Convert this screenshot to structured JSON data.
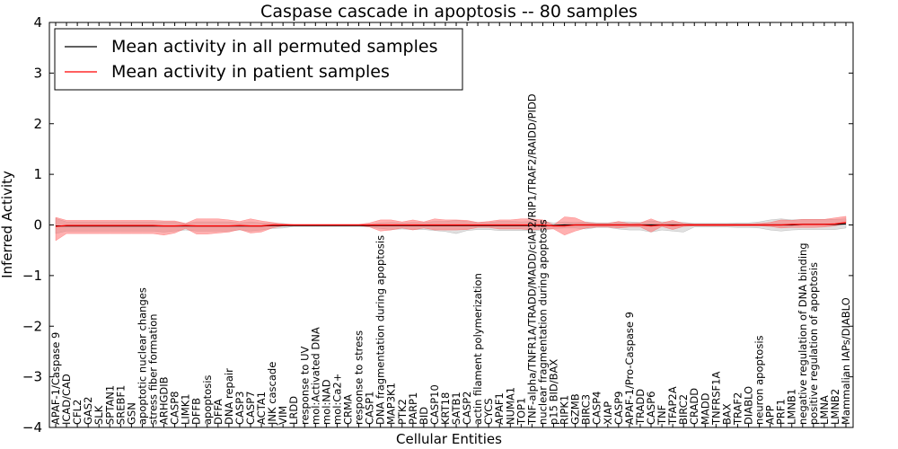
{
  "chart_data": {
    "type": "line",
    "title": "Caspase cascade in apoptosis -- 80 samples",
    "xlabel": "Cellular Entities",
    "ylabel": "Inferred Activity",
    "ylim": [
      -4,
      4
    ],
    "yticks": [
      -4,
      -3,
      -2,
      -1,
      0,
      1,
      2,
      3,
      4
    ],
    "grid": false,
    "legend": {
      "placement": "top-left",
      "entries": [
        {
          "label": "Mean activity in all permuted samples",
          "color": "#000000"
        },
        {
          "label": "Mean activity in patient samples",
          "color": "#ff0000"
        }
      ]
    },
    "categories": [
      "APAF-1/Caspase 9",
      "ICAD/CAD",
      "CFL2",
      "GAS2",
      "SLK",
      "SPTAN1",
      "SREBF1",
      "GSN",
      "apoptotic nuclear changes",
      "stress fiber formation",
      "ARHGDIB",
      "CASP8",
      "LIMK1",
      "DFFB",
      "apoptosis",
      "DFFA",
      "DNA repair",
      "CASP3",
      "CASP7",
      "ACTA1",
      "JNK cascade",
      "VIM",
      "LRDD",
      "response to UV",
      "mol:Activated DNA",
      "mol:NAD",
      "mol:Ca2+",
      "CRMA",
      "response to stress",
      "CASP1",
      "DNA fragmentation during apoptosis",
      "MAP3K1",
      "PTK2",
      "PARP1",
      "BID",
      "CASP10",
      "KRT18",
      "SATB1",
      "CASP2",
      "actin filament polymerization",
      "CYCS",
      "APAF1",
      "NUMA1",
      "TOP1",
      "TNF-alpha/TNFR1A/TRADD/MADD/cIAP2/RIP1/TRAF2/RAIDD/PIDD",
      "nuclear fragmentation during apoptosis",
      "p15 BID/BAX",
      "RIPK1",
      "GZMB",
      "BIRC3",
      "CASP4",
      "XIAP",
      "CASP9",
      "APAF-1/Pro-Caspase 9",
      "TRADD",
      "CASP6",
      "TNF",
      "TFAP2A",
      "BIRC2",
      "CRADD",
      "MADD",
      "TNFRSF1A",
      "BAX",
      "TRAF2",
      "DIABLO",
      "neuron apoptosis",
      "APP",
      "PRF1",
      "LMNB1",
      "negative regulation of DNA binding",
      "positive regulation of apoptosis",
      "LMNA",
      "LMNB2",
      "Mammalian IAPs/DIABLO"
    ],
    "series": [
      {
        "name": "Mean activity in all permuted samples",
        "color": "#000000",
        "values": [
          -0.02,
          -0.02,
          -0.02,
          -0.02,
          -0.02,
          -0.02,
          -0.02,
          -0.02,
          -0.02,
          -0.02,
          -0.02,
          -0.02,
          -0.02,
          -0.02,
          -0.02,
          -0.02,
          -0.02,
          -0.02,
          -0.02,
          -0.02,
          -0.01,
          -0.01,
          -0.01,
          -0.01,
          -0.01,
          -0.01,
          -0.01,
          -0.01,
          -0.01,
          -0.01,
          -0.01,
          -0.01,
          -0.01,
          -0.01,
          -0.01,
          -0.01,
          -0.01,
          -0.01,
          -0.01,
          -0.01,
          -0.01,
          -0.01,
          -0.01,
          -0.01,
          -0.01,
          -0.01,
          -0.01,
          0.0,
          0.0,
          0.0,
          0.0,
          0.0,
          0.0,
          0.0,
          0.0,
          0.0,
          0.0,
          0.0,
          0.0,
          0.0,
          0.0,
          0.0,
          0.0,
          0.0,
          0.0,
          0.0,
          0.0,
          0.0,
          0.0,
          0.01,
          0.01,
          0.01,
          0.01,
          0.02
        ],
        "band_upper": [
          0.15,
          0.08,
          0.08,
          0.08,
          0.08,
          0.08,
          0.08,
          0.08,
          0.08,
          0.08,
          0.08,
          0.08,
          0.05,
          0.08,
          0.08,
          0.08,
          0.08,
          0.06,
          0.08,
          0.06,
          0.04,
          0.04,
          0.01,
          0.01,
          0.01,
          0.01,
          0.01,
          0.01,
          0.01,
          0.02,
          0.05,
          0.06,
          0.05,
          0.06,
          0.06,
          0.08,
          0.08,
          0.1,
          0.08,
          0.06,
          0.06,
          0.08,
          0.08,
          0.07,
          0.08,
          0.08,
          0.05,
          0.06,
          0.05,
          0.06,
          0.04,
          0.04,
          0.06,
          0.06,
          0.05,
          0.08,
          0.06,
          0.06,
          0.05,
          0.03,
          0.03,
          0.03,
          0.03,
          0.04,
          0.04,
          0.06,
          0.1,
          0.12,
          0.1,
          0.1,
          0.1,
          0.1,
          0.1,
          0.1
        ],
        "band_lower": [
          -0.15,
          -0.1,
          -0.1,
          -0.1,
          -0.1,
          -0.1,
          -0.1,
          -0.1,
          -0.1,
          -0.1,
          -0.12,
          -0.1,
          -0.08,
          -0.1,
          -0.1,
          -0.1,
          -0.1,
          -0.08,
          -0.1,
          -0.08,
          -0.06,
          -0.05,
          -0.02,
          -0.02,
          -0.02,
          -0.02,
          -0.02,
          -0.02,
          -0.02,
          -0.03,
          -0.06,
          -0.08,
          -0.07,
          -0.08,
          -0.08,
          -0.1,
          -0.12,
          -0.16,
          -0.1,
          -0.08,
          -0.08,
          -0.1,
          -0.1,
          -0.1,
          -0.1,
          -0.1,
          -0.06,
          -0.06,
          -0.06,
          -0.08,
          -0.05,
          -0.05,
          -0.08,
          -0.1,
          -0.1,
          -0.14,
          -0.1,
          -0.12,
          -0.14,
          -0.04,
          -0.04,
          -0.04,
          -0.04,
          -0.05,
          -0.05,
          -0.06,
          -0.1,
          -0.12,
          -0.1,
          -0.1,
          -0.1,
          -0.1,
          -0.1,
          -0.08
        ]
      },
      {
        "name": "Mean activity in patient samples",
        "color": "#ff0000",
        "values": [
          -0.03,
          -0.01,
          -0.01,
          -0.01,
          -0.01,
          -0.01,
          -0.01,
          -0.01,
          -0.01,
          -0.01,
          -0.02,
          -0.02,
          -0.01,
          -0.02,
          -0.02,
          -0.02,
          -0.02,
          -0.01,
          -0.02,
          -0.02,
          0.0,
          0.0,
          0.0,
          0.0,
          0.0,
          0.0,
          0.0,
          0.0,
          0.0,
          0.0,
          0.0,
          0.0,
          0.0,
          0.0,
          0.0,
          0.0,
          0.0,
          0.0,
          0.0,
          0.0,
          0.0,
          0.0,
          0.0,
          0.0,
          0.0,
          0.0,
          -0.02,
          -0.02,
          0.0,
          0.0,
          0.0,
          0.0,
          0.0,
          0.0,
          0.0,
          -0.02,
          0.0,
          -0.01,
          0.0,
          0.0,
          0.0,
          0.0,
          0.0,
          0.0,
          0.0,
          0.0,
          0.0,
          0.0,
          0.01,
          0.01,
          0.01,
          0.01,
          0.02,
          0.05
        ],
        "band_upper": [
          0.18,
          0.1,
          0.1,
          0.1,
          0.1,
          0.1,
          0.1,
          0.1,
          0.1,
          0.1,
          0.1,
          0.1,
          0.04,
          0.14,
          0.14,
          0.14,
          0.12,
          0.08,
          0.14,
          0.1,
          0.05,
          0.02,
          0.01,
          0.01,
          0.01,
          0.01,
          0.01,
          0.01,
          0.01,
          0.04,
          0.1,
          0.1,
          0.06,
          0.1,
          0.06,
          0.12,
          0.1,
          0.1,
          0.09,
          0.05,
          0.07,
          0.1,
          0.1,
          0.12,
          0.12,
          0.1,
          0.02,
          0.18,
          0.14,
          0.05,
          0.03,
          0.03,
          0.07,
          0.03,
          0.04,
          0.14,
          0.04,
          0.1,
          0.03,
          0.02,
          0.02,
          0.02,
          0.02,
          0.02,
          0.02,
          0.03,
          0.05,
          0.1,
          0.08,
          0.1,
          0.1,
          0.1,
          0.12,
          0.12
        ],
        "band_lower": [
          -0.28,
          -0.16,
          -0.16,
          -0.16,
          -0.16,
          -0.16,
          -0.16,
          -0.16,
          -0.16,
          -0.16,
          -0.18,
          -0.14,
          -0.06,
          -0.16,
          -0.16,
          -0.14,
          -0.12,
          -0.08,
          -0.14,
          -0.12,
          -0.06,
          -0.02,
          -0.01,
          -0.01,
          -0.01,
          -0.01,
          -0.01,
          -0.01,
          -0.01,
          -0.04,
          -0.12,
          -0.1,
          -0.06,
          -0.1,
          -0.06,
          -0.1,
          -0.1,
          -0.1,
          -0.09,
          -0.05,
          -0.05,
          -0.08,
          -0.08,
          -0.08,
          -0.1,
          -0.08,
          -0.06,
          -0.18,
          -0.12,
          -0.06,
          -0.04,
          -0.04,
          -0.06,
          -0.04,
          -0.04,
          -0.12,
          -0.03,
          -0.08,
          -0.03,
          -0.02,
          -0.02,
          -0.02,
          -0.02,
          -0.02,
          -0.02,
          -0.02,
          -0.03,
          -0.06,
          -0.06,
          -0.06,
          -0.06,
          -0.05,
          -0.04,
          -0.02
        ]
      }
    ]
  }
}
